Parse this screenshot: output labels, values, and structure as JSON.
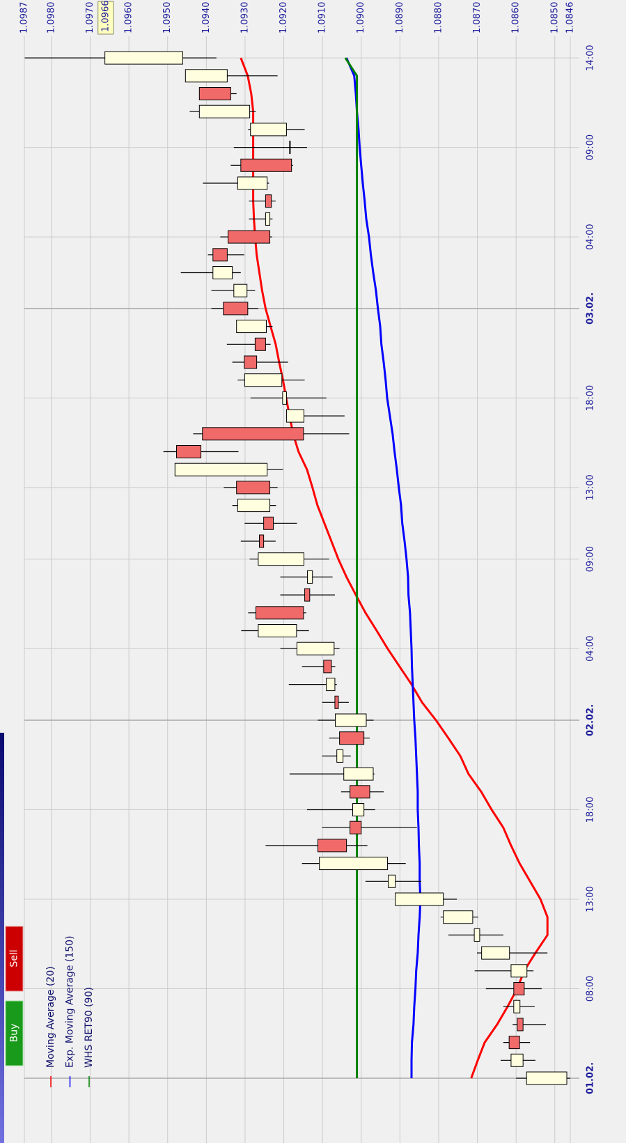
{
  "toolbar": {
    "buy": "Buy",
    "sell": "Sell"
  },
  "chart_data": {
    "type": "candlestick",
    "categories": [
      "01.02.",
      null,
      null,
      null,
      null,
      "08:00",
      null,
      null,
      null,
      null,
      "13:00",
      null,
      null,
      null,
      null,
      "18:00",
      null,
      null,
      null,
      null,
      "02.02.",
      null,
      null,
      null,
      "04:00",
      null,
      null,
      null,
      null,
      "09:00",
      null,
      null,
      null,
      "13:00",
      null,
      null,
      null,
      null,
      "18:00",
      null,
      null,
      null,
      null,
      "03.02.",
      null,
      null,
      null,
      "04:00",
      null,
      null,
      null,
      null,
      "09:00",
      null,
      null,
      null,
      null,
      "14:00"
    ],
    "open": [
      1.08469,
      1.08582,
      1.08618,
      1.08597,
      1.0859,
      1.08606,
      1.08572,
      1.08617,
      1.08694,
      1.08712,
      1.08788,
      1.08912,
      1.08932,
      1.09112,
      1.09029,
      1.08993,
      1.09029,
      1.08969,
      1.09047,
      1.09056,
      1.08987,
      1.09068,
      1.09068,
      1.09097,
      1.0907,
      1.09167,
      1.09272,
      1.09146,
      1.09126,
      1.09148,
      1.09263,
      1.09252,
      1.09236,
      1.09322,
      1.09243,
      1.09477,
      1.0941,
      1.09148,
      1.09193,
      1.09205,
      1.09302,
      1.09274,
      1.09245,
      1.09356,
      1.09295,
      1.09333,
      1.09383,
      1.09344,
      1.09236,
      1.09247,
      1.09243,
      1.09311,
      1.09184,
      1.09193,
      1.09288,
      1.09418,
      1.09346,
      1.09461
    ],
    "high": [
      1.086,
      1.0864,
      1.08633,
      1.08609,
      1.08633,
      1.08678,
      1.08707,
      1.08701,
      1.08775,
      1.08795,
      1.08912,
      1.08989,
      1.09153,
      1.09247,
      1.09101,
      1.0914,
      1.09052,
      1.09185,
      1.09101,
      1.09083,
      1.09112,
      1.09101,
      1.09187,
      1.09153,
      1.09209,
      1.0931,
      1.09292,
      1.09209,
      1.09209,
      1.09288,
      1.09311,
      1.09301,
      1.09333,
      1.09355,
      1.09481,
      1.09511,
      1.09434,
      1.09194,
      1.09286,
      1.09319,
      1.09333,
      1.09347,
      1.09322,
      1.09387,
      1.09387,
      1.09466,
      1.09396,
      1.09364,
      1.0929,
      1.0929,
      1.09409,
      1.09337,
      1.09329,
      1.09292,
      1.09443,
      1.09418,
      1.09454,
      1.09869
    ],
    "low": [
      1.0846,
      1.0855,
      1.08564,
      1.08523,
      1.08552,
      1.08534,
      1.08555,
      1.08519,
      1.08633,
      1.08698,
      1.08753,
      1.08845,
      1.08885,
      1.08984,
      1.08856,
      1.08964,
      1.08942,
      1.08966,
      1.09027,
      1.08978,
      1.08968,
      1.09032,
      1.09063,
      1.09067,
      1.09056,
      1.09135,
      1.09142,
      1.09068,
      1.09074,
      1.09083,
      1.09221,
      1.09166,
      1.0922,
      1.09216,
      1.09202,
      1.09317,
      1.09031,
      1.09043,
      1.0909,
      1.09146,
      1.09189,
      1.09234,
      1.09229,
      1.09266,
      1.09274,
      1.09311,
      1.09302,
      1.0923,
      1.09229,
      1.09221,
      1.09238,
      1.09176,
      1.0914,
      1.09146,
      1.09272,
      1.09322,
      1.09216,
      1.09374
    ],
    "close": [
      1.08573,
      1.08613,
      1.08591,
      1.08582,
      1.08606,
      1.08579,
      1.08613,
      1.08689,
      1.08708,
      1.08788,
      1.08912,
      1.0893,
      1.09108,
      1.09038,
      1.09,
      1.09022,
      1.08978,
      1.09045,
      1.09063,
      1.08993,
      1.09067,
      1.09059,
      1.0909,
      1.09077,
      1.09166,
      1.09266,
      1.09149,
      1.09133,
      1.09139,
      1.09266,
      1.09252,
      1.09227,
      1.09319,
      1.09236,
      1.09481,
      1.09414,
      1.09149,
      1.09193,
      1.09203,
      1.09301,
      1.0927,
      1.09247,
      1.09322,
      1.09293,
      1.09329,
      1.09383,
      1.09346,
      1.09236,
      1.09247,
      1.09232,
      1.09319,
      1.0918,
      1.09185,
      1.09286,
      1.09418,
      1.09337,
      1.09454,
      1.09662
    ],
    "up_color": "#ffffe0",
    "down_color": "#f06a6a",
    "series": [
      {
        "name": "Moving Average (20)",
        "color": "#ff0000",
        "values": [
          1.08716,
          1.08699,
          1.08681,
          1.08649,
          1.08622,
          1.08597,
          1.08579,
          1.0855,
          1.08519,
          1.08519,
          1.08537,
          1.08564,
          1.08591,
          1.08613,
          1.08633,
          1.08663,
          1.0869,
          1.08723,
          1.08744,
          1.08775,
          1.08807,
          1.08843,
          1.0887,
          1.08901,
          1.08932,
          1.0896,
          1.08989,
          1.09014,
          1.09038,
          1.09059,
          1.09077,
          1.09095,
          1.09113,
          1.09126,
          1.0914,
          1.09162,
          1.09176,
          1.09185,
          1.09194,
          1.09202,
          1.09212,
          1.09221,
          1.09234,
          1.09247,
          1.09256,
          1.09263,
          1.0927,
          1.09274,
          1.09277,
          1.09279,
          1.09279,
          1.09279,
          1.09279,
          1.09279,
          1.09279,
          1.09284,
          1.09293,
          1.09311
        ]
      },
      {
        "name": "Exp. Moving Average (150)",
        "color": "#0000ff",
        "values": [
          1.0887,
          1.0887,
          1.08869,
          1.08865,
          1.08863,
          1.0886,
          1.08858,
          1.08854,
          1.08852,
          1.08849,
          1.08847,
          1.08849,
          1.08849,
          1.08851,
          1.08852,
          1.08854,
          1.08854,
          1.08856,
          1.08858,
          1.0886,
          1.08863,
          1.08865,
          1.08867,
          1.08869,
          1.0887,
          1.08872,
          1.08874,
          1.08878,
          1.08879,
          1.08883,
          1.08888,
          1.08894,
          1.08897,
          1.08903,
          1.08908,
          1.08914,
          1.08919,
          1.08926,
          1.08933,
          1.08937,
          1.08942,
          1.08948,
          1.08951,
          1.08957,
          1.08962,
          1.08969,
          1.08975,
          1.0898,
          1.08987,
          1.08991,
          1.08996,
          1.09,
          1.09004,
          1.09007,
          1.09011,
          1.09014,
          1.09018,
          1.09038
        ]
      },
      {
        "name": "WHS RET90 (90)",
        "color": "#008000",
        "values": [
          1.09011,
          1.09011,
          1.09011,
          1.09011,
          1.09011,
          1.09011,
          1.09011,
          1.09011,
          1.09011,
          1.09011,
          1.09011,
          1.09011,
          1.09011,
          1.09011,
          1.09011,
          1.09011,
          1.09011,
          1.09011,
          1.09011,
          1.09011,
          1.09011,
          1.09011,
          1.09011,
          1.09011,
          1.09011,
          1.09011,
          1.09011,
          1.09011,
          1.09011,
          1.09011,
          1.09011,
          1.09011,
          1.09011,
          1.09011,
          1.09011,
          1.09011,
          1.09011,
          1.09011,
          1.09011,
          1.09011,
          1.09011,
          1.09011,
          1.09011,
          1.09011,
          1.09011,
          1.09011,
          1.09011,
          1.09011,
          1.09011,
          1.09011,
          1.09011,
          1.09011,
          1.09011,
          1.09011,
          1.09011,
          1.09011,
          1.09011,
          1.09041
        ]
      }
    ],
    "ylim": [
      1.0846,
      1.0987
    ],
    "yticks": [
      1.0846,
      {
        "value": 1.085,
        "label": "1.0850"
      },
      {
        "value": 1.086,
        "label": "1.0860"
      },
      {
        "value": 1.087,
        "label": "1.0870"
      },
      {
        "value": 1.088,
        "label": "1.0880"
      },
      {
        "value": 1.089,
        "label": "1.0890"
      },
      {
        "value": 1.09,
        "label": "1.0900"
      },
      {
        "value": 1.091,
        "label": "1.0910"
      },
      {
        "value": 1.092,
        "label": "1.0920"
      },
      {
        "value": 1.093,
        "label": "1.0930"
      },
      {
        "value": 1.094,
        "label": "1.0940"
      },
      {
        "value": 1.095,
        "label": "1.0950"
      },
      {
        "value": 1.096,
        "label": "1.0960"
      },
      {
        "value": 1.097,
        "label": "1.0970"
      },
      {
        "value": 1.098,
        "label": "1.0980"
      },
      1.0987
    ],
    "current_price": 1.0966,
    "grid": true
  }
}
